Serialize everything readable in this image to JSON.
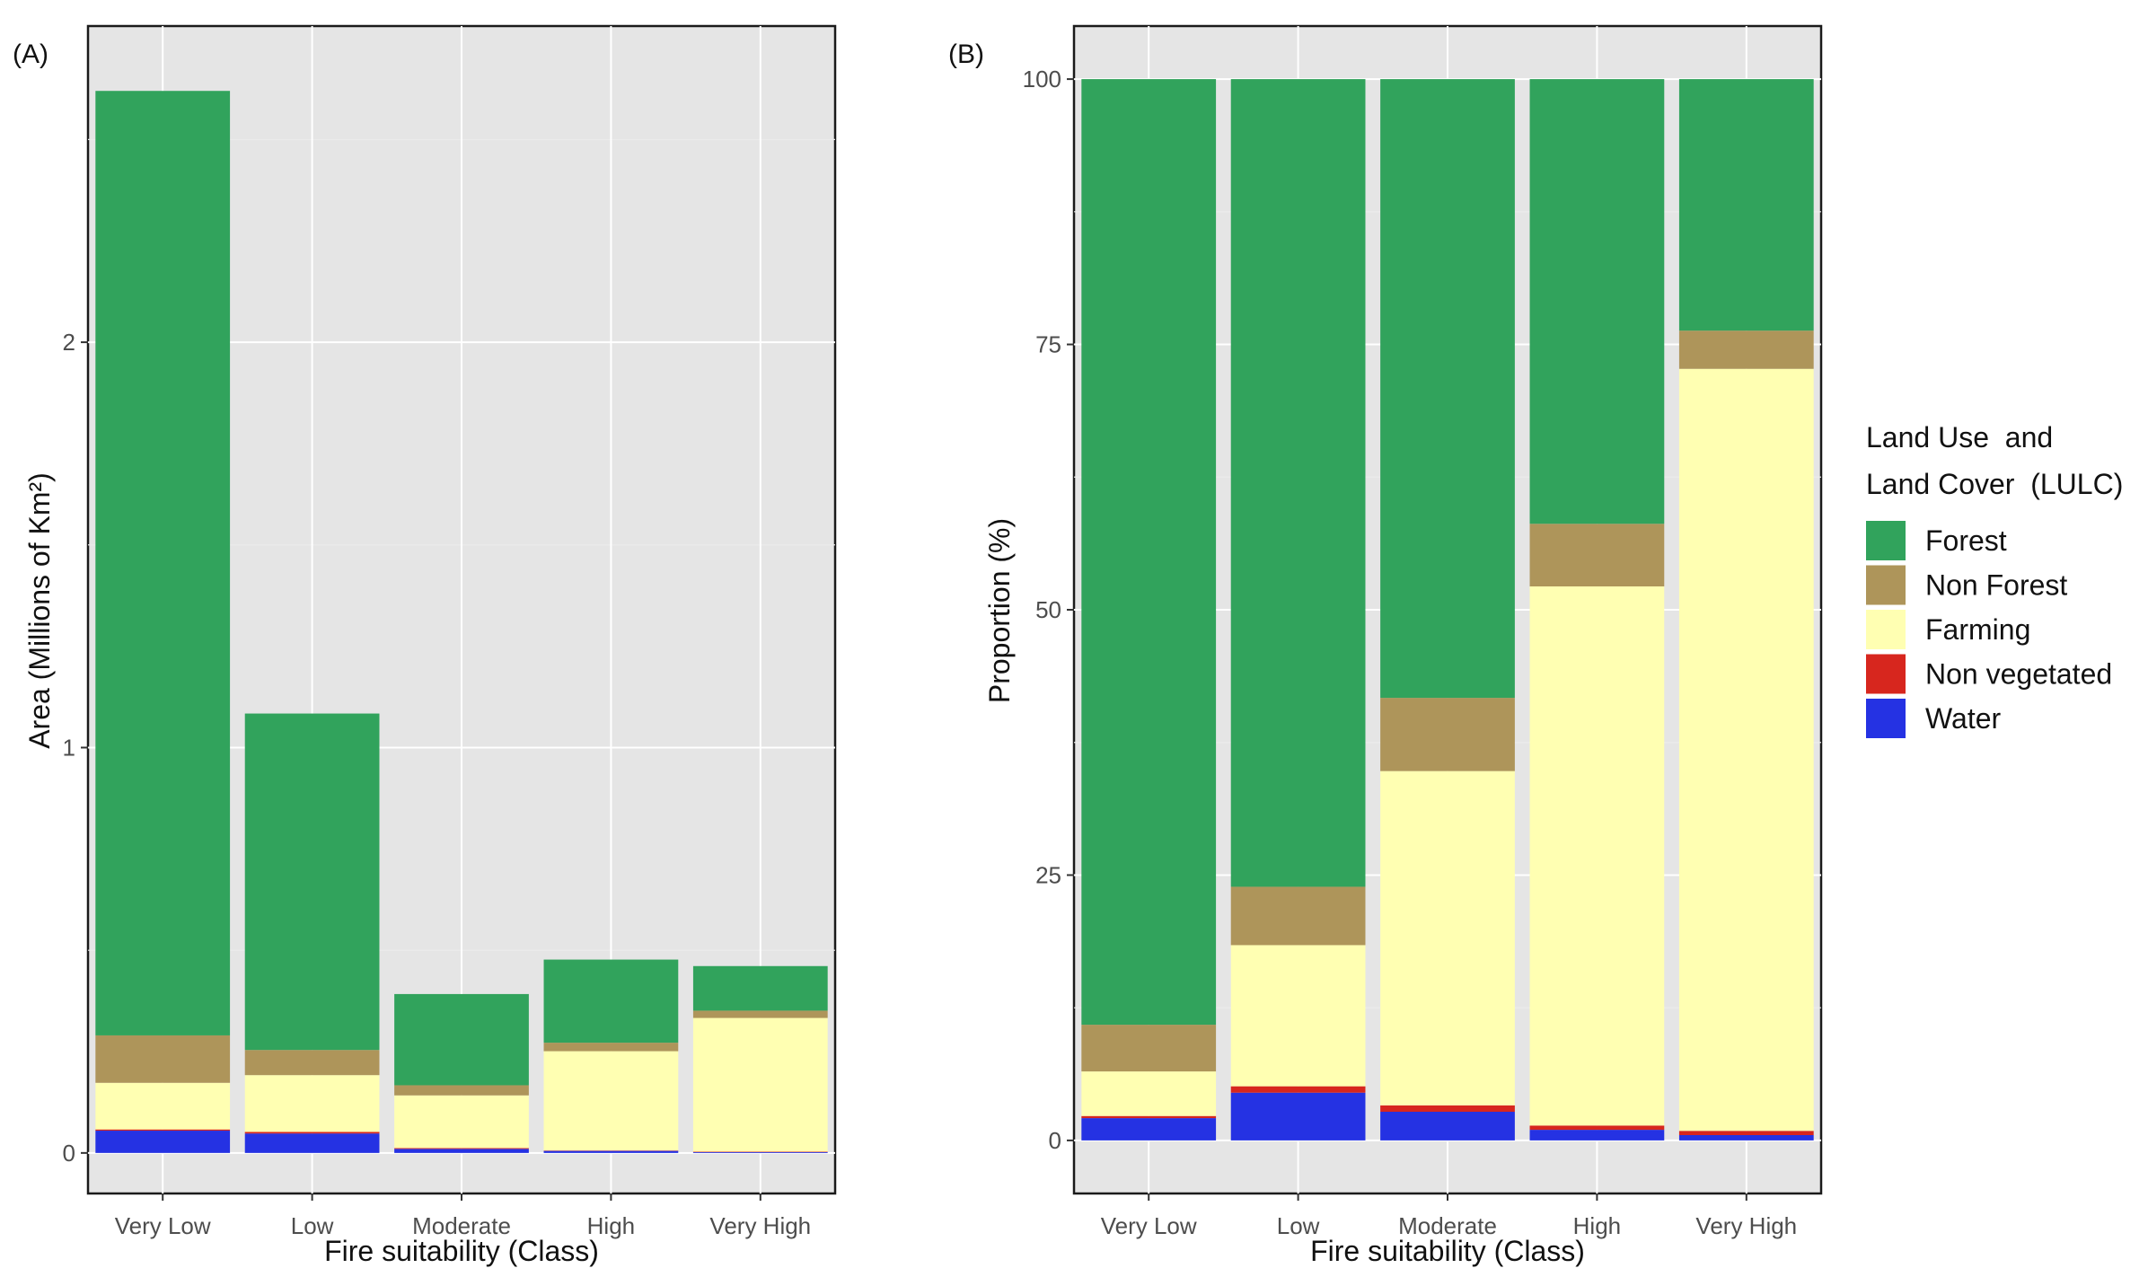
{
  "chart_data": [
    {
      "type": "bar",
      "stacked": true,
      "panel_label": "(A)",
      "categories": [
        "Very Low",
        "Low",
        "Moderate",
        "High",
        "Very High"
      ],
      "xlabel": "Fire suitability (Class)",
      "ylabel": "Area (Millions of Km²)",
      "ylim": [
        -0.1,
        2.78
      ],
      "yticks": [
        0,
        1,
        2
      ],
      "grid": true,
      "series": [
        {
          "name": "Water",
          "values": [
            0.055,
            0.048,
            0.01,
            0.005,
            0.002
          ]
        },
        {
          "name": "Non vegetated",
          "values": [
            0.003,
            0.004,
            0.002,
            0.001,
            0.001
          ]
        },
        {
          "name": "Farming",
          "values": [
            0.115,
            0.14,
            0.13,
            0.245,
            0.33
          ]
        },
        {
          "name": "Non Forest",
          "values": [
            0.117,
            0.062,
            0.025,
            0.021,
            0.018
          ]
        },
        {
          "name": "Forest",
          "values": [
            2.33,
            0.83,
            0.225,
            0.205,
            0.11
          ]
        }
      ]
    },
    {
      "type": "bar",
      "stacked": true,
      "panel_label": "(B)",
      "categories": [
        "Very Low",
        "Low",
        "Moderate",
        "High",
        "Very High"
      ],
      "xlabel": "Fire suitability (Class)",
      "ylabel": "Proportion (%)",
      "ylim": [
        -5,
        105
      ],
      "yticks": [
        0,
        25,
        50,
        75,
        100
      ],
      "grid": true,
      "series": [
        {
          "name": "Water",
          "values": [
            2.1,
            4.5,
            2.7,
            1.0,
            0.5
          ]
        },
        {
          "name": "Non vegetated",
          "values": [
            0.2,
            0.6,
            0.6,
            0.4,
            0.4
          ]
        },
        {
          "name": "Farming",
          "values": [
            4.2,
            13.3,
            31.5,
            50.8,
            71.8
          ]
        },
        {
          "name": "Non Forest",
          "values": [
            4.4,
            5.5,
            6.9,
            5.9,
            3.6
          ]
        },
        {
          "name": "Forest",
          "values": [
            89.1,
            76.1,
            58.3,
            41.9,
            23.7
          ]
        }
      ]
    }
  ],
  "legend": {
    "title_line1": "Land Use  and",
    "title_line2": "Land Cover  (LULC)",
    "items": [
      {
        "name": "Forest",
        "color": "#31a35c"
      },
      {
        "name": "Non Forest",
        "color": "#ae955a"
      },
      {
        "name": "Farming",
        "color": "#ffffb2"
      },
      {
        "name": "Non vegetated",
        "color": "#d7261e"
      },
      {
        "name": "Water",
        "color": "#2532e3"
      }
    ]
  },
  "colors": {
    "Forest": "#31a35c",
    "Non Forest": "#ae955a",
    "Farming": "#ffffb2",
    "Non vegetated": "#d7261e",
    "Water": "#2532e3"
  }
}
